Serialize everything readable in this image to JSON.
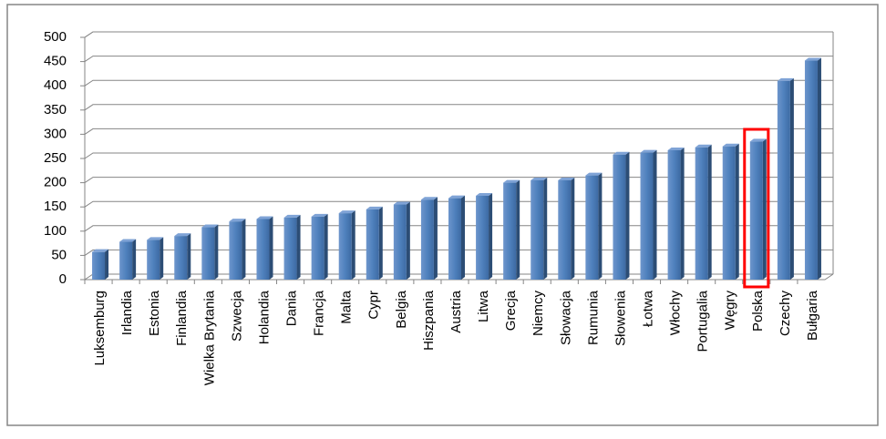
{
  "chart_data": {
    "type": "bar",
    "categories": [
      "Luksemburg",
      "Irlandia",
      "Estonia",
      "Finlandia",
      "Wielka Brytania",
      "Szwecja",
      "Holandia",
      "Dania",
      "Francja",
      "Malta",
      "Cypr",
      "Belgia",
      "Hiszpania",
      "Austria",
      "Litwa",
      "Grecja",
      "Niemcy",
      "Słowacja",
      "Rumunia",
      "Słowenia",
      "Łotwa",
      "Włochy",
      "Portugalia",
      "Węgry",
      "Polska",
      "Czechy",
      "Bułgaria"
    ],
    "values": [
      57,
      78,
      82,
      90,
      108,
      120,
      125,
      128,
      130,
      137,
      145,
      155,
      165,
      168,
      173,
      200,
      205,
      205,
      215,
      258,
      262,
      267,
      273,
      275,
      285,
      410,
      452
    ],
    "color": "#4f81bd",
    "ylim": [
      0,
      500
    ],
    "yticks": [
      0,
      50,
      100,
      150,
      200,
      250,
      300,
      350,
      400,
      450,
      500
    ],
    "grid": true
  }
}
